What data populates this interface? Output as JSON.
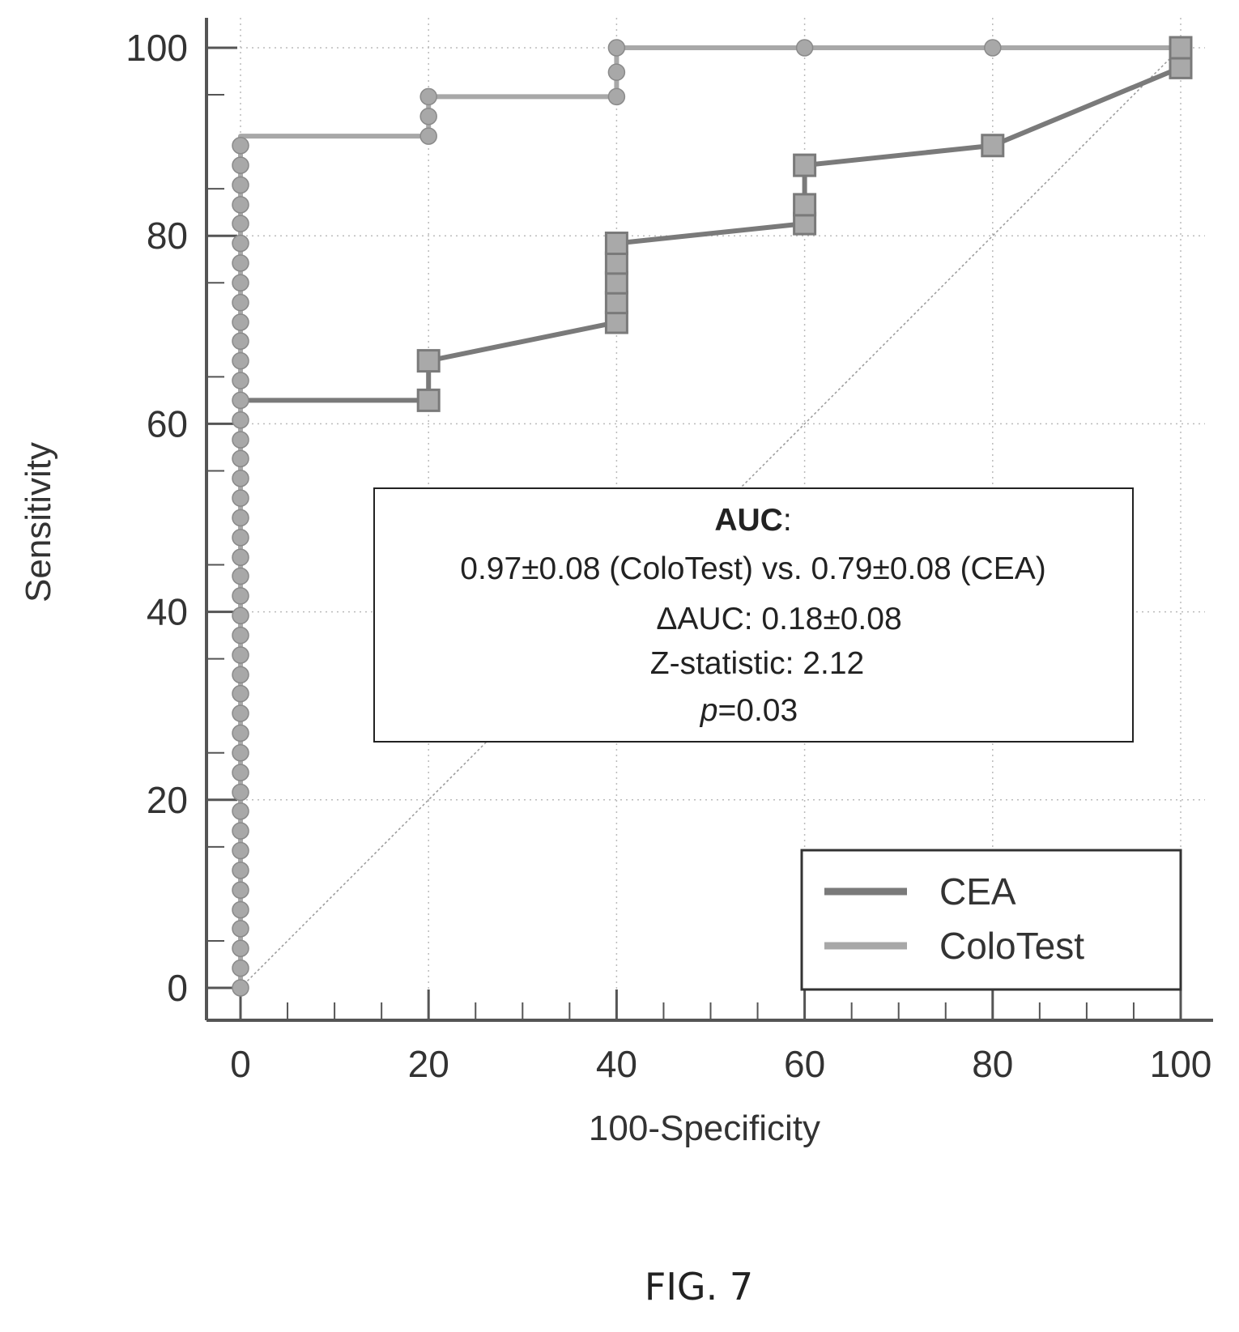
{
  "chart_data": {
    "type": "line",
    "title": "",
    "xlabel": "100-Specificity",
    "ylabel": "Sensitivity",
    "xlim": [
      0,
      100
    ],
    "ylim": [
      0,
      100
    ],
    "xticks": [
      0,
      20,
      40,
      60,
      80,
      100
    ],
    "yticks": [
      0,
      20,
      40,
      60,
      80,
      100
    ],
    "grid": "dotted",
    "legend_position": "bottom-right",
    "reference_line": "diagonal",
    "series": [
      {
        "name": "CEA",
        "marker": "square",
        "color": "#7a7a7a",
        "x": [
          0,
          0,
          20,
          20,
          40,
          40,
          40,
          40,
          40,
          60,
          60,
          60,
          80,
          100,
          100
        ],
        "y": [
          0,
          62.5,
          62.5,
          66.7,
          70.8,
          72.9,
          75,
          77.1,
          79.2,
          81.3,
          83.3,
          87.5,
          89.6,
          97.9,
          100
        ]
      },
      {
        "name": "ColoTest",
        "marker": "circle",
        "color": "#a8a8a8",
        "x": [
          0,
          0,
          20,
          20,
          20,
          40,
          40,
          40,
          60,
          80,
          100
        ],
        "y": [
          0,
          90.6,
          90.6,
          92.7,
          94.8,
          94.8,
          97.4,
          100,
          100,
          100,
          100
        ]
      }
    ],
    "colotest_zero_points": [
      0,
      2.1,
      4.2,
      6.3,
      8.3,
      10.4,
      12.5,
      14.6,
      16.7,
      18.8,
      20.8,
      22.9,
      25,
      27.1,
      29.2,
      31.3,
      33.3,
      35.4,
      37.5,
      39.6,
      41.7,
      43.8,
      45.8,
      47.9,
      50,
      52.1,
      54.2,
      56.3,
      58.3,
      60.4,
      62.5,
      64.6,
      66.7,
      68.8,
      70.8,
      72.9,
      75,
      77.1,
      79.2,
      81.3,
      83.3,
      85.4,
      87.5,
      89.6
    ]
  },
  "annotation": {
    "title": "AUC",
    "title_suffix": ":",
    "comparison": "0.97±0.08 (ColoTest) vs. 0.79±0.08  (CEA)",
    "delta": "ΔAUC: 0.18±0.08",
    "zstat": "Z-statistic: 2.12",
    "p_symbol": "p",
    "p_value": "=0.03"
  },
  "legend": {
    "items": [
      {
        "label": "CEA",
        "color": "#7a7a7a"
      },
      {
        "label": "ColoTest",
        "color": "#a8a8a8"
      }
    ]
  },
  "caption": "FIG. 7"
}
